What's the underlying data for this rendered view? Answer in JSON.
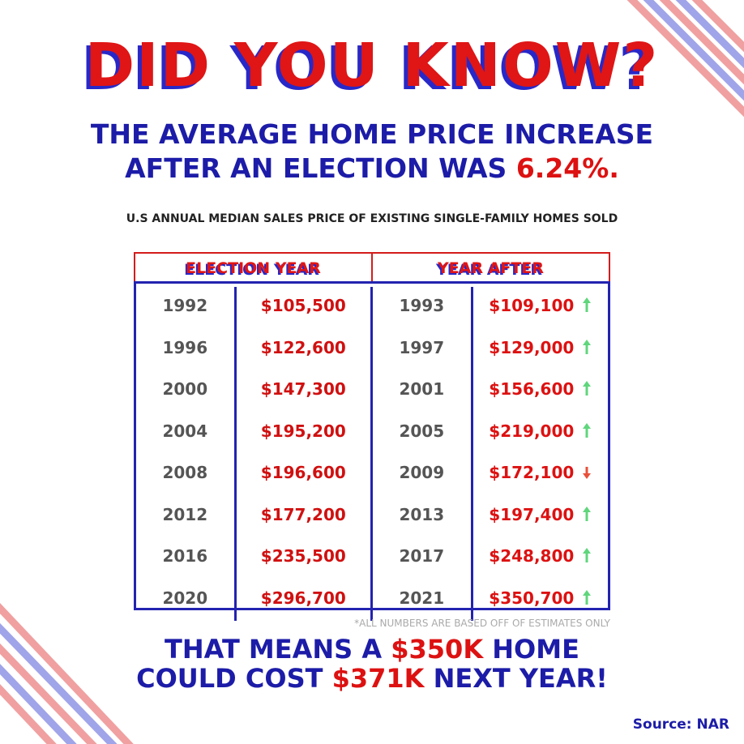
{
  "title": "DID YOU KNOW?",
  "headline": {
    "line1": "THE AVERAGE HOME PRICE INCREASE",
    "line2": [
      "AFTER AN ELECTION WAS ",
      "6.24%."
    ]
  },
  "caption": "U.S ANNUAL MEDIAN SALES PRICE OF EXISTING SINGLE-FAMILY HOMES SOLD",
  "table": {
    "headers": [
      "ELECTION YEAR",
      "YEAR AFTER"
    ],
    "rows": [
      [
        "1992",
        "$105,500",
        "1993",
        "$109,100"
      ],
      [
        "1996",
        "$122,600",
        "1997",
        "$129,000"
      ],
      [
        "2000",
        "$147,300",
        "2001",
        "$156,600"
      ],
      [
        "2004",
        "$195,200",
        "2005",
        "$219,000"
      ],
      [
        "2008",
        "$196,600",
        "2009",
        "$172,100"
      ],
      [
        "2012",
        "$177,200",
        "2013",
        "$197,400"
      ],
      [
        "2016",
        "$235,500",
        "2017",
        "$248,800"
      ],
      [
        "2020",
        "$296,700",
        "2021",
        "$350,700"
      ]
    ],
    "trends": [
      "up",
      "up",
      "up",
      "up",
      "down",
      "up",
      "up",
      "up"
    ]
  },
  "footnote": "*ALL NUMBERS ARE BASED OFF OF ESTIMATES ONLY",
  "conclusion": {
    "line1": [
      "THAT MEANS A ",
      "$350K",
      " HOME"
    ],
    "line2": [
      "COULD COST ",
      "$371K",
      " NEXT YEAR!"
    ]
  },
  "source": "Source: NAR"
}
